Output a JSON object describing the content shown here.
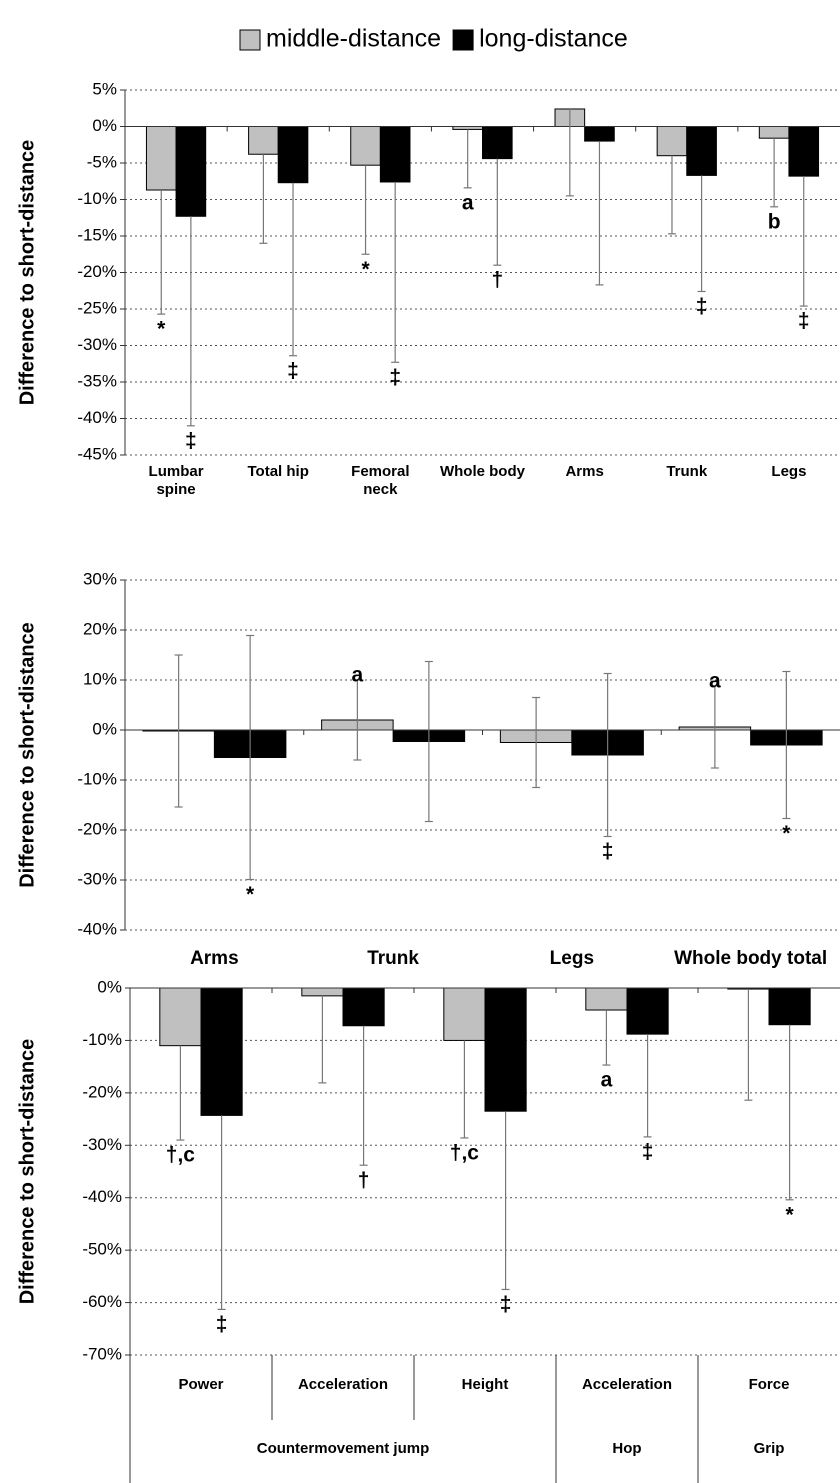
{
  "chart_data": [
    {
      "type": "bar",
      "ylabel": "Difference to short-distance",
      "legend": true,
      "categories": [
        "Lumbar spine",
        "Total hip",
        "Femoral neck",
        "Whole body",
        "Arms",
        "Trunk",
        "Legs"
      ],
      "series": [
        {
          "name": "middle-distance",
          "color": "#c0c0c0",
          "values": [
            -8.7,
            -3.8,
            -5.3,
            -0.4,
            2.4,
            -4.0,
            -1.6
          ],
          "errors": [
            17,
            12.2,
            12.2,
            8,
            11.9,
            10.7,
            9.4
          ],
          "annotations": [
            "*",
            null,
            "*",
            "a",
            null,
            null,
            "b"
          ],
          "annotation_position": "below"
        },
        {
          "name": "long-distance",
          "color": "#000000",
          "values": [
            -12.3,
            -7.7,
            -7.6,
            -4.4,
            -2.0,
            -6.7,
            -6.8
          ],
          "errors": [
            28.7,
            23.7,
            24.7,
            14.6,
            19.7,
            15.9,
            17.8
          ],
          "annotations": [
            "‡",
            "‡",
            "‡",
            "†",
            null,
            "‡",
            "‡"
          ],
          "annotation_position": "below"
        }
      ],
      "error_direction": "down",
      "ylim": [
        -45,
        5
      ],
      "yticks": [
        {
          "value": 5,
          "label": "5%"
        },
        {
          "value": 0,
          "label": "0%"
        },
        {
          "value": -5,
          "label": "-5%"
        },
        {
          "value": -10,
          "label": "-10%"
        },
        {
          "value": -15,
          "label": "-15%"
        },
        {
          "value": -20,
          "label": "-20%"
        },
        {
          "value": -25,
          "label": "-25%"
        },
        {
          "value": -30,
          "label": "-30%"
        },
        {
          "value": -35,
          "label": "-35%"
        },
        {
          "value": -40,
          "label": "-40%"
        },
        {
          "value": -45,
          "label": "-45%"
        }
      ],
      "grid": true
    },
    {
      "type": "bar",
      "ylabel": "Difference to short-distance",
      "categories": [
        "Arms",
        "Trunk",
        "Legs",
        "Whole body total"
      ],
      "series": [
        {
          "color": "#c0c0c0",
          "values": [
            -0.2,
            2.0,
            -2.5,
            0.6
          ],
          "errors": [
            15.2,
            8,
            9,
            8.2
          ],
          "annotations": [
            null,
            "a",
            null,
            "a"
          ],
          "annotation_position": "above"
        },
        {
          "color": "#000000",
          "values": [
            -5.5,
            -2.3,
            -5.0,
            -3.0
          ],
          "errors": [
            24.4,
            16,
            16.3,
            14.7
          ],
          "annotations": [
            "*",
            null,
            "‡",
            "*"
          ],
          "annotation_position": "below"
        }
      ],
      "error_direction": "both",
      "ylim": [
        -40,
        30
      ],
      "yticks": [
        {
          "value": 30,
          "label": "30%"
        },
        {
          "value": 20,
          "label": "20%"
        },
        {
          "value": 10,
          "label": "10%"
        },
        {
          "value": 0,
          "label": "0%"
        },
        {
          "value": -10,
          "label": "-10%"
        },
        {
          "value": -20,
          "label": "-20%"
        },
        {
          "value": -30,
          "label": "-30%"
        },
        {
          "value": -40,
          "label": "-40%"
        }
      ],
      "grid": true
    },
    {
      "type": "bar",
      "ylabel": "Difference to short-distance",
      "categories": [
        "Power",
        "Acceleration",
        "Height",
        "Acceleration",
        "Force"
      ],
      "groups": [
        "Countermovement jump",
        "Countermovement jump",
        "Countermovement jump",
        "Hop",
        "Grip"
      ],
      "series": [
        {
          "color": "#c0c0c0",
          "values": [
            -11.0,
            -1.5,
            -10.0,
            -4.2,
            -0.2
          ],
          "errors": [
            18,
            16.6,
            18.6,
            10.5,
            21.2
          ],
          "annotations": [
            "†,c",
            null,
            "†,c",
            "a",
            null
          ],
          "annotation_position": "below"
        },
        {
          "color": "#000000",
          "values": [
            -24.3,
            -7.2,
            -23.5,
            -8.8,
            -7.0
          ],
          "errors": [
            37,
            26.6,
            34,
            19.6,
            33.4
          ],
          "annotations": [
            "‡",
            "†",
            "‡",
            "‡",
            "*"
          ],
          "annotation_position": "below"
        }
      ],
      "error_direction": "down",
      "ylim": [
        -70,
        0
      ],
      "yticks": [
        {
          "value": 0,
          "label": "0%"
        },
        {
          "value": -10,
          "label": "-10%"
        },
        {
          "value": -20,
          "label": "-20%"
        },
        {
          "value": -30,
          "label": "-30%"
        },
        {
          "value": -40,
          "label": "-40%"
        },
        {
          "value": -50,
          "label": "-50%"
        },
        {
          "value": -60,
          "label": "-60%"
        },
        {
          "value": -70,
          "label": "-70%"
        }
      ],
      "grid": true
    }
  ]
}
